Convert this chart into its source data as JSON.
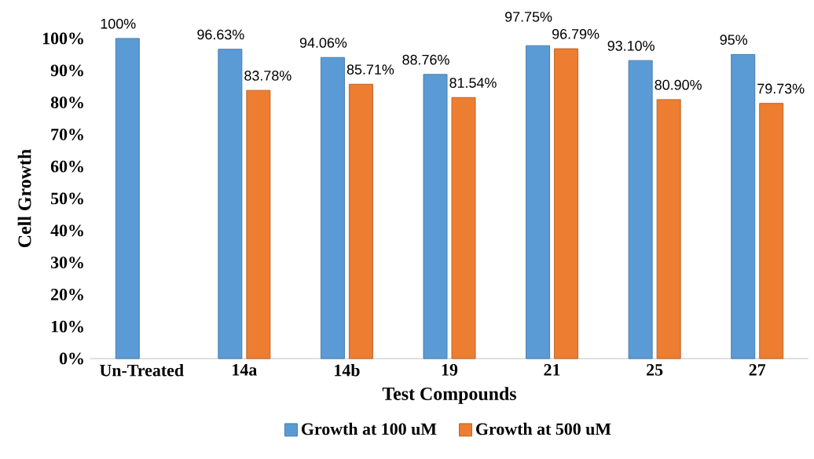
{
  "chart_data": {
    "type": "bar",
    "xlabel": "Test Compounds",
    "ylabel": "Cell Growth",
    "categories": [
      "Un-Treated",
      "14a",
      "14b",
      "19",
      "21",
      "25",
      "27"
    ],
    "series": [
      {
        "name": "Growth at 100 uM",
        "color": "#5b9bd5",
        "values": [
          100,
          96.63,
          94.06,
          88.76,
          97.75,
          93.1,
          95
        ],
        "value_labels": [
          "100%",
          "96.63%",
          "94.06%",
          "88.76%",
          "97.75%",
          "93.10%",
          "95%"
        ]
      },
      {
        "name": "Growth at 500 uM",
        "color": "#ed7d31",
        "values": [
          null,
          83.78,
          85.71,
          81.54,
          96.79,
          80.9,
          79.73
        ],
        "value_labels": [
          null,
          "83.78%",
          "85.71%",
          "81.54%",
          "96.79%",
          "80.90%",
          "79.73%"
        ]
      }
    ],
    "ylim": [
      0,
      100
    ],
    "yticks": [
      {
        "value": 0,
        "label": "0%"
      },
      {
        "value": 10,
        "label": "10%"
      },
      {
        "value": 20,
        "label": "20%"
      },
      {
        "value": 30,
        "label": "30%"
      },
      {
        "value": 40,
        "label": "40%"
      },
      {
        "value": 50,
        "label": "50%"
      },
      {
        "value": 60,
        "label": "60%"
      },
      {
        "value": 70,
        "label": "70%"
      },
      {
        "value": 80,
        "label": "80%"
      },
      {
        "value": 90,
        "label": "90%"
      },
      {
        "value": 100,
        "label": "100%"
      }
    ],
    "legend": "bottom"
  }
}
